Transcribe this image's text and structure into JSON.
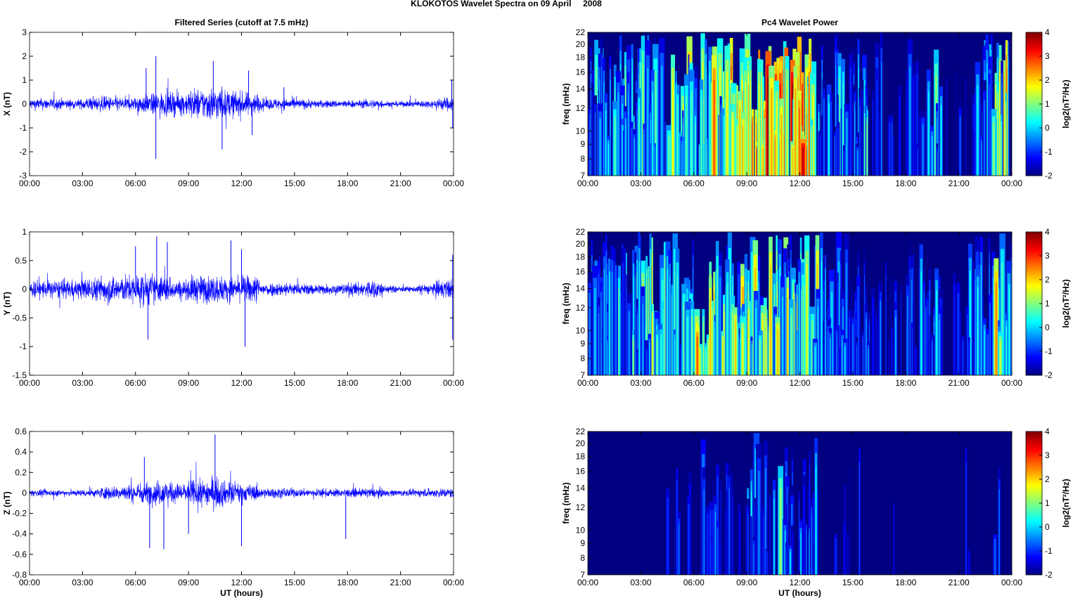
{
  "suptitle": "KLOKOTOS Wavelet Spectra on 09 April     2008",
  "chart_data": [
    {
      "type": "line",
      "title": "Filtered Series (cutoff at 7.5 mHz)",
      "ylabel": "X (nT)",
      "xlabel": "",
      "ylim": [
        -3,
        3
      ],
      "yticks": [
        "-3",
        "-2",
        "-1",
        "0",
        "1",
        "2",
        "3"
      ],
      "xticks": [
        "00:00",
        "03:00",
        "06:00",
        "09:00",
        "12:00",
        "15:00",
        "18:00",
        "21:00",
        "00:00"
      ],
      "color": "#0000ff",
      "hourly_amplitude": [
        0.3,
        0.3,
        0.25,
        0.35,
        0.4,
        0.35,
        0.5,
        0.6,
        0.6,
        0.8,
        0.9,
        0.7,
        0.6,
        0.3,
        0.3,
        0.25,
        0.2,
        0.2,
        0.2,
        0.25,
        0.15,
        0.15,
        0.2,
        0.35
      ],
      "spikes": [
        [
          6.6,
          1.5
        ],
        [
          7.15,
          2.0
        ],
        [
          7.15,
          -2.3
        ],
        [
          10.4,
          1.8
        ],
        [
          10.9,
          -1.9
        ],
        [
          12.4,
          1.4
        ],
        [
          12.6,
          -1.3
        ],
        [
          14.4,
          0.7
        ],
        [
          23.9,
          1.0
        ],
        [
          23.95,
          -1.0
        ]
      ]
    },
    {
      "type": "line",
      "title": "",
      "ylabel": "Y (nT)",
      "xlabel": "",
      "ylim": [
        -1.5,
        1
      ],
      "yticks": [
        "-1.5",
        "-1",
        "-0.5",
        "0",
        "0.5",
        "1"
      ],
      "xticks": [
        "00:00",
        "03:00",
        "06:00",
        "09:00",
        "12:00",
        "15:00",
        "18:00",
        "21:00",
        "00:00"
      ],
      "color": "#0000ff",
      "hourly_amplitude": [
        0.2,
        0.2,
        0.2,
        0.25,
        0.3,
        0.3,
        0.35,
        0.3,
        0.2,
        0.3,
        0.3,
        0.25,
        0.3,
        0.15,
        0.15,
        0.12,
        0.12,
        0.12,
        0.15,
        0.2,
        0.08,
        0.06,
        0.12,
        0.2
      ],
      "spikes": [
        [
          6.0,
          0.75
        ],
        [
          6.7,
          -0.88
        ],
        [
          7.2,
          0.92
        ],
        [
          7.8,
          0.82
        ],
        [
          11.4,
          0.85
        ],
        [
          12.2,
          -1.0
        ],
        [
          12.0,
          0.7
        ],
        [
          23.95,
          0.6
        ],
        [
          23.95,
          -0.88
        ]
      ]
    },
    {
      "type": "line",
      "title": "",
      "ylabel": "Z (nT)",
      "xlabel": "UT (hours)",
      "ylim": [
        -0.8,
        0.6
      ],
      "yticks": [
        "-0.8",
        "-0.6",
        "-0.4",
        "-0.2",
        "0",
        "0.2",
        "0.4",
        "0.6"
      ],
      "xticks": [
        "00:00",
        "03:00",
        "06:00",
        "09:00",
        "12:00",
        "15:00",
        "18:00",
        "21:00",
        "00:00"
      ],
      "color": "#0000ff",
      "hourly_amplitude": [
        0.04,
        0.04,
        0.04,
        0.05,
        0.08,
        0.1,
        0.13,
        0.15,
        0.12,
        0.16,
        0.18,
        0.14,
        0.1,
        0.06,
        0.06,
        0.05,
        0.05,
        0.05,
        0.05,
        0.06,
        0.04,
        0.04,
        0.05,
        0.06
      ],
      "spikes": [
        [
          6.8,
          -0.54
        ],
        [
          7.6,
          -0.55
        ],
        [
          6.5,
          0.35
        ],
        [
          10.5,
          0.57
        ],
        [
          12.0,
          -0.52
        ],
        [
          9.0,
          -0.4
        ],
        [
          17.9,
          -0.45
        ]
      ]
    },
    {
      "type": "heatmap",
      "title": "Pc4 Wavelet Power",
      "ylabel": "freq (mHz)",
      "xlabel": "",
      "ylim": [
        7,
        22
      ],
      "yscale": "log",
      "yticks": [
        "7",
        "8",
        "9",
        "10",
        "12",
        "14",
        "16",
        "18",
        "20",
        "22"
      ],
      "xticks": [
        "00:00",
        "03:00",
        "06:00",
        "09:00",
        "12:00",
        "15:00",
        "18:00",
        "21:00",
        "00:00"
      ],
      "colorbar": {
        "label": "log2(nT²/Hz)",
        "range": [
          -2,
          4
        ],
        "ticks": [
          "-2",
          "-1",
          "0",
          "1",
          "2",
          "3",
          "4"
        ]
      },
      "hourly_power_log2": [
        0.3,
        0.4,
        0.2,
        0.8,
        1.2,
        1.0,
        1.3,
        1.8,
        2.3,
        2.6,
        3.0,
        2.8,
        2.6,
        -0.3,
        -0.4,
        -0.2,
        -1.5,
        -1.5,
        -1.2,
        0.3,
        -1.8,
        -1.6,
        0.6,
        1.5
      ]
    },
    {
      "type": "heatmap",
      "title": "",
      "ylabel": "freq (mHz)",
      "xlabel": "",
      "ylim": [
        7,
        22
      ],
      "yscale": "log",
      "yticks": [
        "7",
        "8",
        "9",
        "10",
        "12",
        "14",
        "16",
        "18",
        "20",
        "22"
      ],
      "xticks": [
        "00:00",
        "03:00",
        "06:00",
        "09:00",
        "12:00",
        "15:00",
        "18:00",
        "21:00",
        "00:00"
      ],
      "colorbar": {
        "label": "log2(nT²/Hz)",
        "range": [
          -2,
          4
        ],
        "ticks": [
          "-2",
          "-1",
          "0",
          "1",
          "2",
          "3",
          "4"
        ]
      },
      "hourly_power_log2": [
        0.2,
        0.2,
        0.3,
        0.9,
        1.0,
        1.2,
        2.0,
        1.4,
        0.9,
        1.2,
        1.8,
        1.3,
        1.8,
        -0.2,
        -0.3,
        -0.3,
        -1.2,
        -1.2,
        -0.9,
        -0.3,
        -1.9,
        -1.6,
        0.2,
        1.2
      ]
    },
    {
      "type": "heatmap",
      "title": "",
      "ylabel": "freq (mHz)",
      "xlabel": "UT (hours)",
      "ylim": [
        7,
        22
      ],
      "yscale": "log",
      "yticks": [
        "7",
        "8",
        "9",
        "10",
        "12",
        "14",
        "16",
        "18",
        "20",
        "22"
      ],
      "xticks": [
        "00:00",
        "03:00",
        "06:00",
        "09:00",
        "12:00",
        "15:00",
        "18:00",
        "21:00",
        "00:00"
      ],
      "colorbar": {
        "label": "log2(nT²/Hz)",
        "range": [
          -2,
          4
        ],
        "ticks": [
          "-2",
          "-1",
          "0",
          "1",
          "2",
          "3",
          "4"
        ]
      },
      "hourly_power_log2": [
        -3,
        -3,
        -3,
        -2.5,
        -2.5,
        -1.6,
        -1.2,
        -1.0,
        -1.0,
        -0.6,
        -0.3,
        -0.8,
        -0.6,
        -2.5,
        -1.6,
        -2.5,
        -3,
        -3,
        -3,
        -3,
        -3,
        -2.2,
        -3,
        -1.6
      ]
    }
  ]
}
